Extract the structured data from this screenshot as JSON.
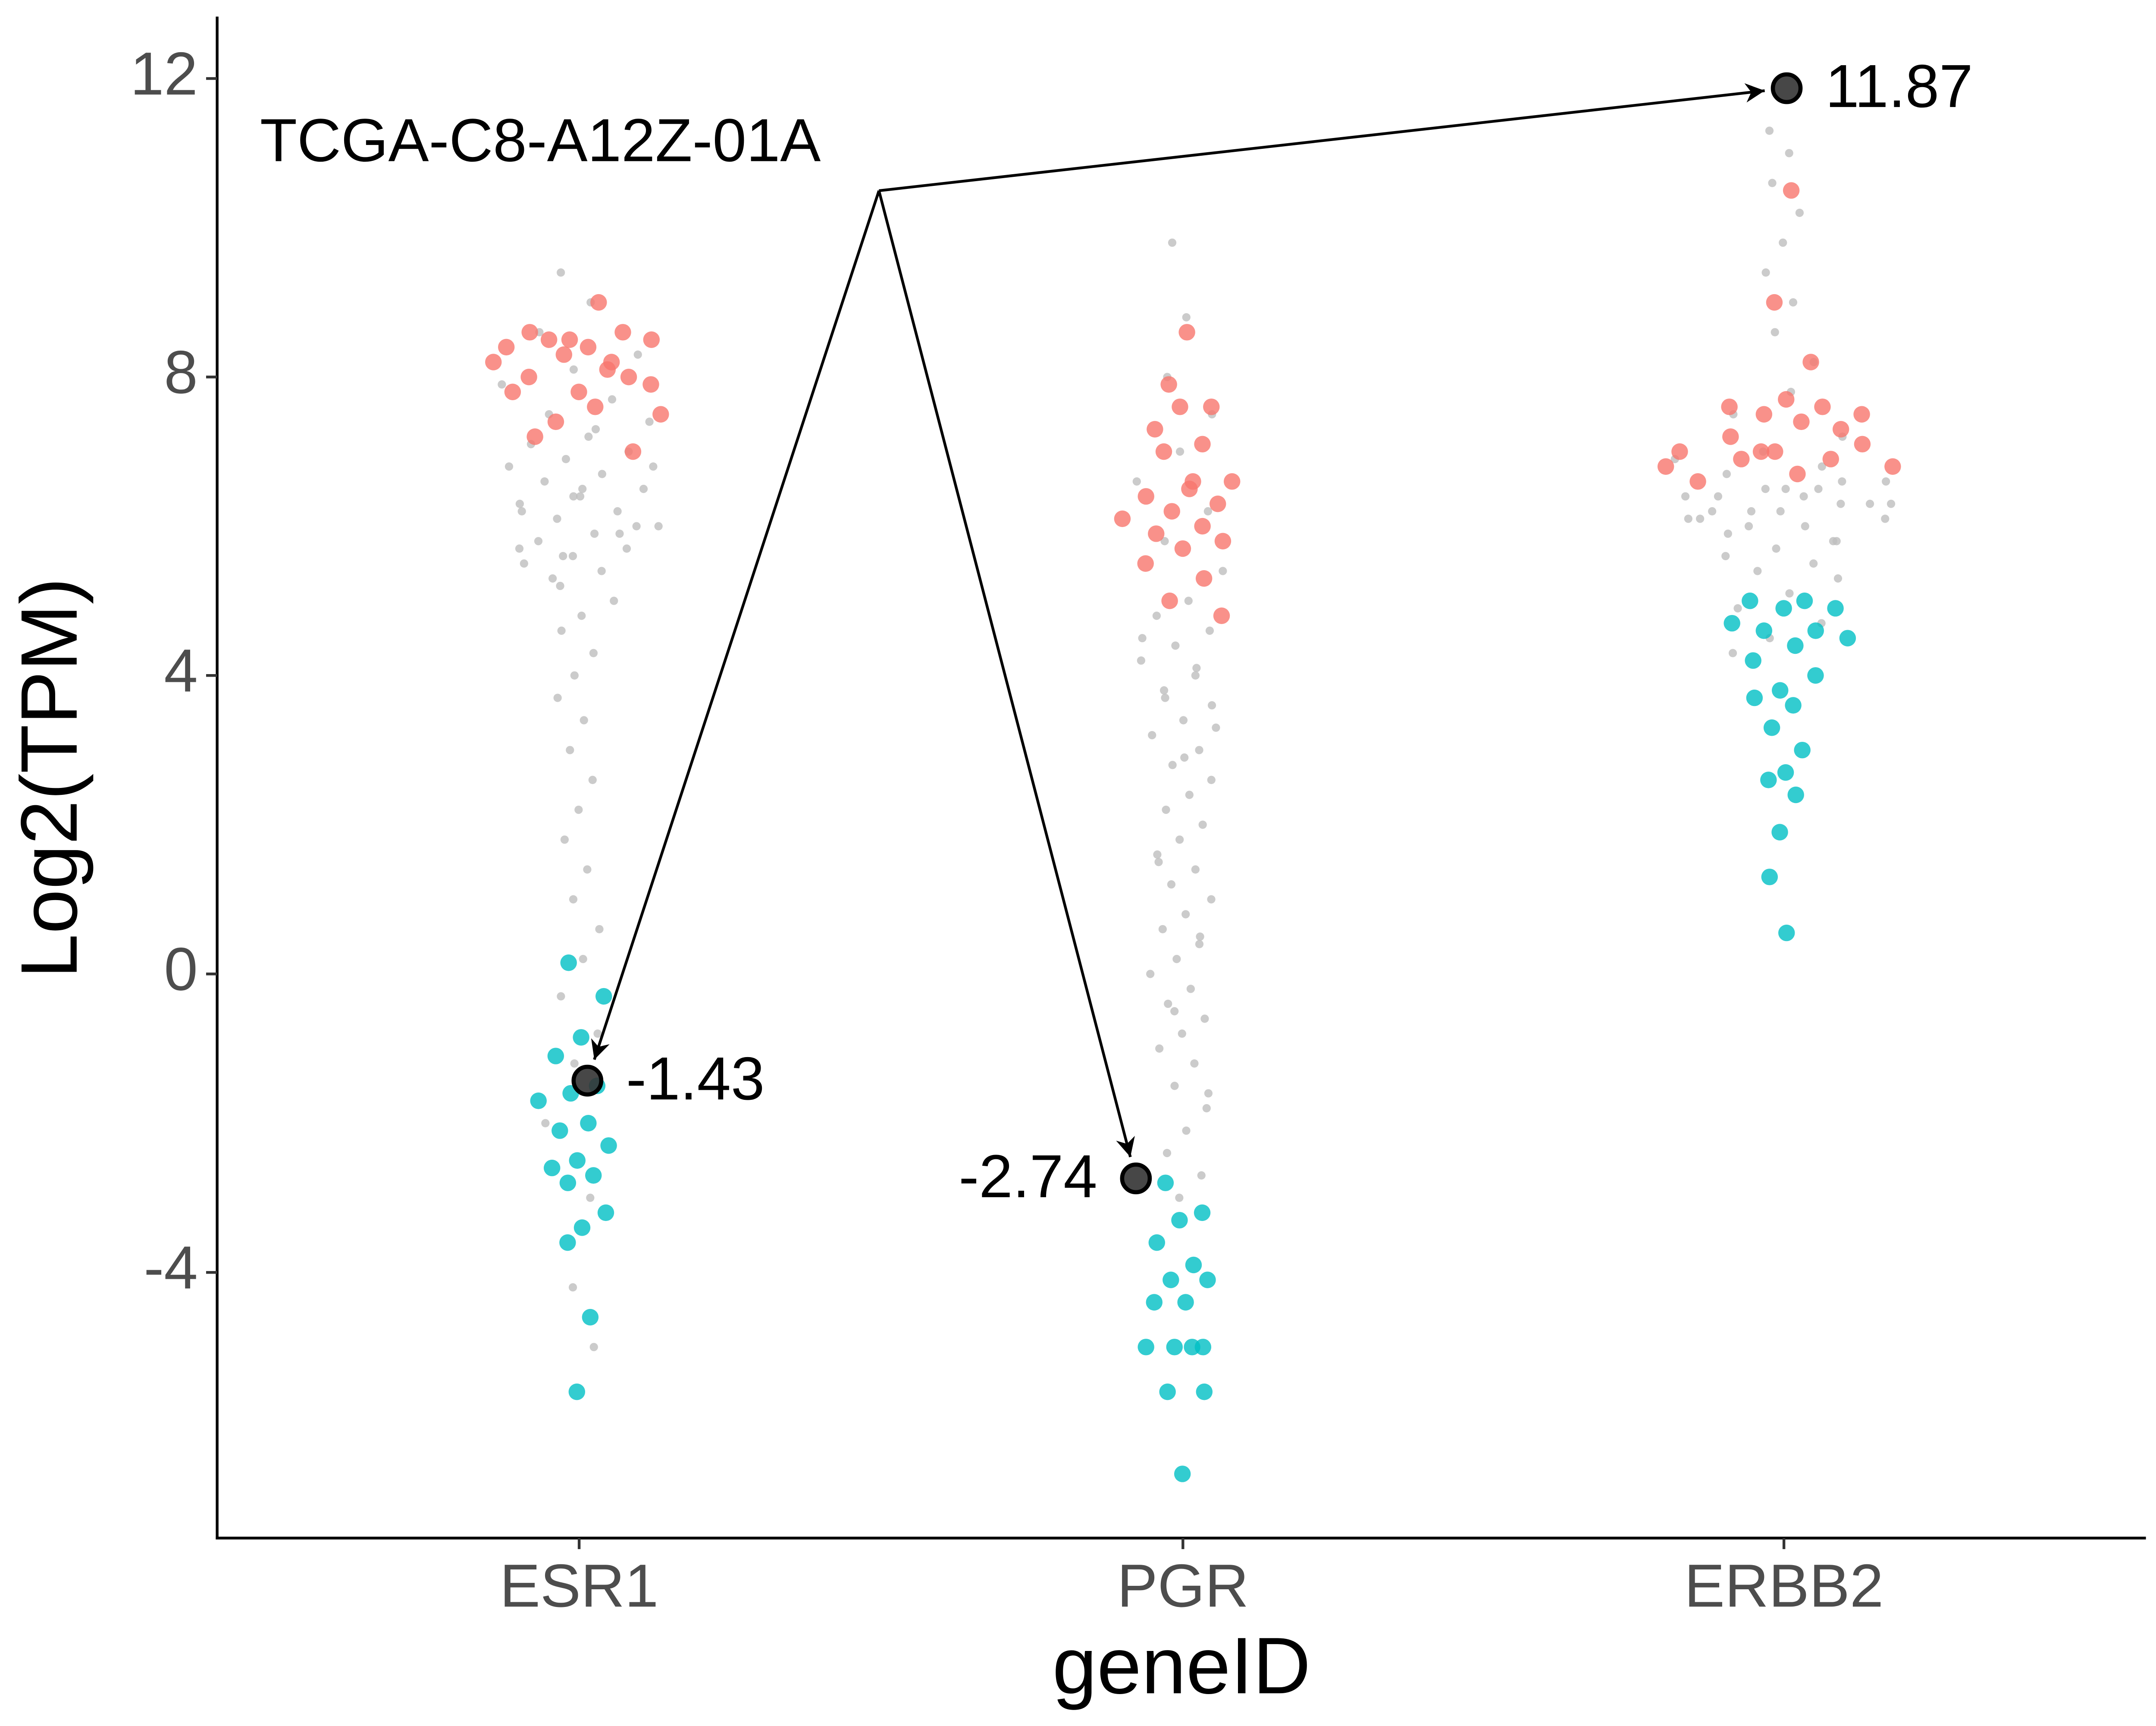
{
  "chart_data": {
    "type": "beeswarm",
    "x_label": "geneID",
    "y_label": "Log2(TPM)",
    "categories": [
      "ESR1",
      "PGR",
      "ERBB2"
    ],
    "ylim": [
      -7.56,
      12.83
    ],
    "yticks": [
      -4,
      0,
      4,
      8,
      12
    ],
    "grid": false,
    "series": [
      {
        "color": "#bebebe",
        "values": [
          [
            9.4,
            9.0,
            8.6,
            8.3,
            8.1,
            7.9,
            7.7,
            7.5,
            7.4,
            7.2,
            7.1,
            7.0,
            6.9,
            6.8,
            6.7,
            6.6,
            6.5,
            6.4,
            6.3,
            6.2,
            6.1,
            6.0,
            5.9,
            5.8,
            5.7,
            5.6,
            5.5,
            5.4,
            5.2,
            5.0,
            4.8,
            4.6,
            4.3,
            4.0,
            3.7,
            3.4,
            3.0,
            2.6,
            2.2,
            1.8,
            1.4,
            1.0,
            0.6,
            0.2,
            -0.3,
            -0.8,
            -1.2,
            -2.0,
            -3.0,
            -4.2,
            -5.0,
            6.5,
            6.2,
            5.9,
            5.6,
            6.8,
            7.3,
            5.3,
            6.0,
            6.4,
            5.7
          ],
          [
            9.8,
            8.8,
            8.0,
            7.5,
            7.0,
            6.6,
            6.2,
            5.8,
            5.4,
            5.0,
            4.8,
            4.6,
            4.4,
            4.2,
            4.0,
            3.8,
            3.6,
            3.4,
            3.2,
            3.0,
            2.8,
            2.6,
            2.4,
            2.2,
            2.0,
            1.8,
            1.6,
            1.4,
            1.2,
            1.0,
            0.8,
            0.6,
            0.4,
            0.2,
            0,
            -0.2,
            -0.4,
            -0.6,
            -0.8,
            -1.0,
            -1.2,
            -1.5,
            -1.8,
            -2.1,
            -2.4,
            -2.7,
            -3.0,
            4.5,
            4.1,
            3.7,
            3.3,
            2.9,
            1.5,
            0.5,
            -0.5,
            -1.6
          ],
          [
            11.3,
            11.0,
            10.6,
            10.2,
            9.8,
            9.4,
            9.0,
            8.6,
            8.2,
            7.8,
            7.5,
            7.2,
            7.0,
            6.9,
            6.8,
            6.7,
            6.6,
            6.5,
            6.4,
            6.3,
            6.2,
            6.1,
            6.0,
            5.9,
            5.8,
            5.7,
            5.6,
            5.5,
            5.4,
            5.3,
            5.1,
            4.9,
            4.7,
            4.5,
            4.3,
            6.5,
            6.4,
            6.3,
            6.2,
            6.1,
            6.6,
            6.0,
            6.3,
            6.4,
            6.2,
            5.8,
            6.5,
            6.1
          ]
        ]
      },
      {
        "color": "#f8766d",
        "values": [
          [
            9.0,
            8.5,
            8.5,
            8.4,
            8.6,
            8.6,
            8.3,
            8.2,
            8.1,
            8.0,
            7.9,
            7.8,
            7.8,
            8.0,
            7.4,
            7.5,
            7.6,
            7.2,
            7.0,
            8.5,
            8.4,
            8.2
          ],
          [
            8.6,
            7.9,
            7.6,
            7.6,
            7.3,
            7.1,
            7.0,
            6.6,
            6.5,
            6.4,
            6.3,
            6.2,
            6.1,
            6.0,
            5.9,
            5.8,
            5.7,
            5.5,
            5.3,
            5.0,
            4.8,
            6.6
          ],
          [
            10.5,
            9.0,
            8.2,
            7.7,
            7.6,
            7.6,
            7.5,
            7.5,
            7.4,
            7.2,
            7.1,
            7.0,
            7.0,
            6.9,
            6.9,
            6.8,
            6.7,
            6.6,
            7.3,
            7.0,
            6.8
          ]
        ]
      },
      {
        "color": "#00bfc4",
        "values": [
          [
            0.15,
            -0.3,
            -0.85,
            -1.1,
            -1.5,
            -1.6,
            -1.7,
            -2.0,
            -2.1,
            -2.3,
            -2.5,
            -2.6,
            -2.7,
            -2.8,
            -3.2,
            -3.4,
            -3.6,
            -4.6,
            -5.6
          ],
          [
            -2.8,
            -3.2,
            -3.3,
            -3.6,
            -3.9,
            -4.1,
            -4.1,
            -4.4,
            -4.4,
            -5.0,
            -5.0,
            -5.0,
            -5.0,
            -5.6,
            -5.6,
            -6.7
          ],
          [
            5.0,
            5.0,
            4.9,
            4.9,
            4.7,
            4.6,
            4.6,
            4.5,
            4.4,
            4.2,
            4.0,
            3.8,
            3.7,
            3.6,
            3.3,
            3.0,
            2.7,
            2.6,
            2.4,
            1.9,
            1.3,
            0.55
          ]
        ]
      }
    ],
    "highlight": {
      "label": "TCGA-C8-A12Z-01A",
      "color": "#333333",
      "values": [
        -1.43,
        -2.74,
        11.87
      ]
    }
  }
}
